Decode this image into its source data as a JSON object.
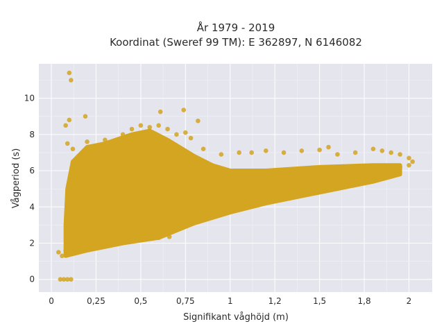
{
  "chart_data": {
    "type": "scatter",
    "title_line1": "År 1979 - 2019",
    "title_line2": "Koordinat (Sweref 99 TM): E 362897, N 6146082",
    "xlabel": "Signifikant våghöjd (m)",
    "ylabel": "Vågperiod (s)",
    "xlim": [
      -0.07,
      2.13
    ],
    "ylim": [
      -0.7,
      11.9
    ],
    "xticks": [
      0,
      0.25,
      0.5,
      0.75,
      1,
      1.25,
      1.5,
      1.75,
      2
    ],
    "xtick_labels": [
      "0",
      "0,25",
      "0,5",
      "0,75",
      "1",
      "1,2",
      "1,5",
      "1,8",
      "2"
    ],
    "yticks": [
      0,
      2,
      4,
      6,
      8,
      10
    ],
    "ytick_labels": [
      "0",
      "2",
      "4",
      "6",
      "8",
      "10"
    ],
    "grid": true,
    "marker_color": "#d4a520",
    "plot_background": "#e5e5ee",
    "series": [
      {
        "points": [
          [
            0.1,
            11.4
          ],
          [
            0.11,
            11.0
          ],
          [
            0.08,
            8.5
          ],
          [
            0.1,
            8.8
          ],
          [
            0.19,
            9.0
          ],
          [
            0.61,
            9.25
          ],
          [
            0.74,
            9.35
          ],
          [
            0.82,
            8.75
          ],
          [
            0.09,
            7.5
          ],
          [
            0.12,
            7.2
          ],
          [
            0.05,
            0.0
          ],
          [
            0.07,
            0.0
          ],
          [
            0.09,
            0.0
          ],
          [
            0.11,
            0.0
          ],
          [
            0.04,
            1.5
          ],
          [
            0.06,
            1.3
          ],
          [
            0.08,
            1.6
          ],
          [
            0.1,
            1.4
          ],
          [
            0.15,
            1.6
          ],
          [
            0.2,
            1.8
          ],
          [
            0.3,
            2.0
          ],
          [
            0.4,
            2.1
          ],
          [
            0.5,
            2.2
          ],
          [
            0.6,
            2.3
          ],
          [
            0.66,
            2.35
          ],
          [
            0.2,
            7.6
          ],
          [
            0.3,
            7.7
          ],
          [
            0.4,
            8.0
          ],
          [
            0.45,
            8.3
          ],
          [
            0.5,
            8.5
          ],
          [
            0.55,
            8.4
          ],
          [
            0.6,
            8.5
          ],
          [
            0.65,
            8.3
          ],
          [
            0.7,
            8.0
          ],
          [
            0.75,
            8.1
          ],
          [
            0.78,
            7.8
          ],
          [
            0.85,
            7.2
          ],
          [
            0.95,
            6.9
          ],
          [
            1.05,
            7.0
          ],
          [
            1.12,
            7.0
          ],
          [
            1.2,
            7.1
          ],
          [
            1.3,
            7.0
          ],
          [
            1.4,
            7.1
          ],
          [
            1.5,
            7.15
          ],
          [
            1.55,
            7.3
          ],
          [
            1.6,
            6.9
          ],
          [
            1.7,
            7.0
          ],
          [
            1.8,
            7.2
          ],
          [
            1.85,
            7.1
          ],
          [
            1.9,
            7.0
          ],
          [
            1.95,
            6.9
          ],
          [
            2.0,
            6.7
          ],
          [
            2.02,
            6.5
          ],
          [
            2.0,
            6.3
          ],
          [
            1.95,
            6.2
          ],
          [
            1.9,
            5.9
          ],
          [
            1.8,
            5.8
          ],
          [
            1.7,
            5.6
          ],
          [
            1.6,
            5.5
          ],
          [
            1.5,
            5.2
          ],
          [
            1.4,
            5.0
          ],
          [
            1.3,
            4.8
          ],
          [
            1.2,
            4.6
          ],
          [
            1.1,
            4.3
          ],
          [
            1.0,
            4.0
          ],
          [
            0.9,
            3.8
          ],
          [
            0.8,
            3.5
          ],
          [
            0.7,
            3.1
          ],
          [
            0.6,
            2.7
          ],
          [
            0.5,
            2.4
          ]
        ]
      }
    ]
  }
}
